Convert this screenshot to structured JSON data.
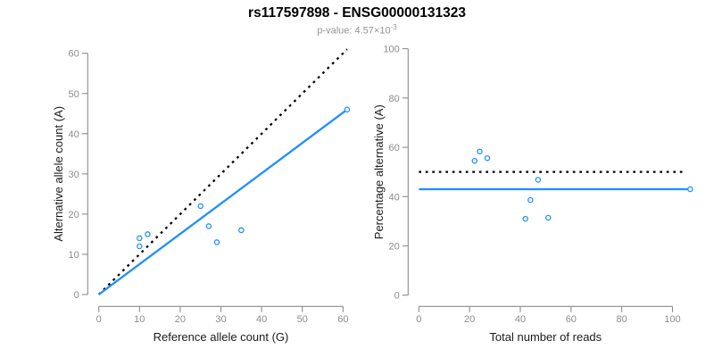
{
  "header": {
    "title": "rs117597898 - ENSG00000131323",
    "subtitle_base": "p-value: 4.57×10",
    "subtitle_exponent": "-3"
  },
  "colors": {
    "accent_blue": "#1E90FF",
    "dotted_black": "#000000",
    "axis_gray": "#8C8C8C",
    "label_black": "#1A1A1A",
    "subtitle_gray": "#949494",
    "background": "#FFFFFF"
  },
  "chart_data": [
    {
      "type": "scatter",
      "title": "rs117597898 - ENSG00000131323",
      "subtitle": "p-value: 4.57×10^-3",
      "xlabel": "Reference allele count (G)",
      "ylabel": "Alternative allele count (A)",
      "xlim": [
        0,
        63
      ],
      "ylim": [
        0,
        63
      ],
      "xticks": [
        0,
        10,
        20,
        30,
        40,
        50,
        60
      ],
      "yticks": [
        0,
        10,
        20,
        30,
        40,
        50,
        60
      ],
      "grid": false,
      "legend": "none",
      "points": [
        [
          10,
          14
        ],
        [
          12,
          15
        ],
        [
          10,
          12
        ],
        [
          25,
          22
        ],
        [
          27,
          17
        ],
        [
          29,
          13
        ],
        [
          35,
          16
        ],
        [
          61,
          46
        ]
      ],
      "lines": [
        {
          "name": "identity-line",
          "style": "dotted",
          "color": "#000000",
          "from": [
            0,
            0
          ],
          "to": [
            61,
            61
          ]
        },
        {
          "name": "fit-line",
          "style": "solid",
          "color": "#1E90FF",
          "from": [
            0,
            0
          ],
          "to": [
            61,
            46
          ]
        }
      ]
    },
    {
      "type": "scatter",
      "xlabel": "Total number of reads",
      "ylabel": "Percentage alternative (A)",
      "xlim": [
        0,
        107
      ],
      "ylim": [
        0,
        100
      ],
      "xticks": [
        0,
        20,
        40,
        60,
        80,
        100
      ],
      "yticks": [
        0,
        20,
        40,
        60,
        80,
        100
      ],
      "grid": false,
      "legend": "none",
      "points": [
        [
          24,
          58.3
        ],
        [
          27,
          55.6
        ],
        [
          22,
          54.5
        ],
        [
          47,
          46.8
        ],
        [
          44,
          38.6
        ],
        [
          42,
          31.0
        ],
        [
          51,
          31.4
        ],
        [
          107,
          43.0
        ]
      ],
      "lines": [
        {
          "name": "fifty-percent-line",
          "style": "dotted",
          "color": "#000000",
          "from": [
            0,
            50
          ],
          "to": [
            105,
            50
          ]
        },
        {
          "name": "mean-percentage-line",
          "style": "solid",
          "color": "#1E90FF",
          "from": [
            0,
            43
          ],
          "to": [
            107,
            43
          ]
        }
      ]
    }
  ]
}
